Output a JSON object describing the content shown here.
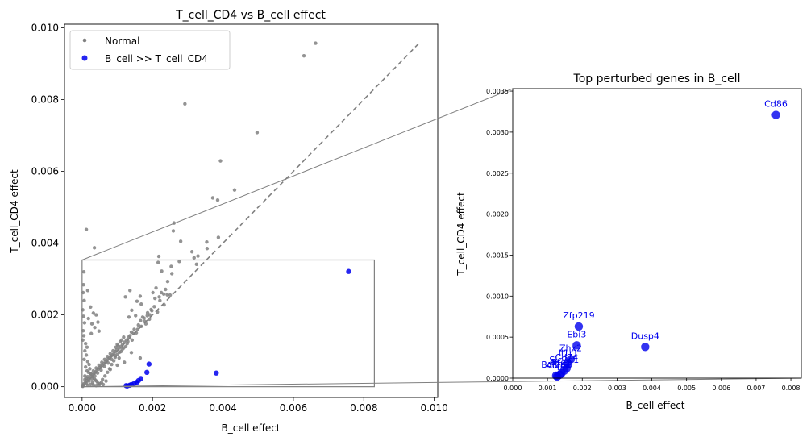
{
  "chart_data": [
    {
      "type": "scatter",
      "title": "T_cell_CD4 vs B_cell effect",
      "xlabel": "B_cell effect",
      "ylabel": "T_cell_CD4 effect",
      "xlim": [
        -0.0005,
        0.0101
      ],
      "ylim": [
        -0.0003,
        0.0101
      ],
      "xticks": [
        0.0,
        0.002,
        0.004,
        0.006,
        0.008,
        0.01
      ],
      "xtick_labels": [
        "0.000",
        "0.002",
        "0.004",
        "0.006",
        "0.008",
        "0.010"
      ],
      "yticks": [
        0.0,
        0.002,
        0.004,
        0.006,
        0.008,
        0.01
      ],
      "ytick_labels": [
        "0.000",
        "0.002",
        "0.004",
        "0.006",
        "0.008",
        "0.010"
      ],
      "grid": false,
      "legend_position": "top-left",
      "colors": {
        "normal": "#808080",
        "highlight": "#0000ee",
        "diagonal": "#808080"
      },
      "diagonal": {
        "x": [
          0.0,
          0.00955
        ],
        "y": [
          0.0,
          0.00955
        ],
        "style": "dashed"
      },
      "zoom_box": {
        "x": [
          0.0,
          0.0083
        ],
        "y": [
          0.0,
          0.00353
        ]
      },
      "series": [
        {
          "name": "Normal",
          "color": "#808080",
          "points": [
            [
              0.00663,
              0.00957
            ],
            [
              0.0063,
              0.00922
            ],
            [
              0.00292,
              0.00788
            ],
            [
              0.00497,
              0.00708
            ],
            [
              0.00393,
              0.00629
            ],
            [
              0.00371,
              0.00526
            ],
            [
              0.00385,
              0.0052
            ],
            [
              0.00433,
              0.00548
            ],
            [
              0.00012,
              0.00438
            ],
            [
              0.00035,
              0.00387
            ],
            [
              0.00261,
              0.00456
            ],
            [
              0.00259,
              0.00434
            ],
            [
              0.0028,
              0.00405
            ],
            [
              0.00387,
              0.00416
            ],
            [
              0.00354,
              0.00403
            ],
            [
              0.00355,
              0.00385
            ],
            [
              0.00312,
              0.00376
            ],
            [
              0.00329,
              0.00364
            ],
            [
              0.00318,
              0.00359
            ],
            [
              0.00325,
              0.00341
            ],
            [
              0.00218,
              0.00363
            ],
            [
              0.00216,
              0.00346
            ],
            [
              0.00226,
              0.00322
            ],
            [
              0.00253,
              0.00335
            ],
            [
              0.00255,
              0.00315
            ],
            [
              0.00276,
              0.00349
            ],
            [
              0.00243,
              0.00293
            ],
            [
              0.00237,
              0.00271
            ],
            [
              0.00242,
              0.00256
            ],
            [
              0.0025,
              0.00255
            ],
            [
              0.00219,
              0.0025
            ],
            [
              0.00221,
              0.0024
            ],
            [
              0.00233,
              0.00228
            ],
            [
              0.00207,
              0.00246
            ],
            [
              0.00205,
              0.00223
            ],
            [
              0.00196,
              0.00215
            ],
            [
              0.00165,
              0.00252
            ],
            [
              0.00136,
              0.00268
            ],
            [
              0.00123,
              0.0025
            ],
            [
              0.00156,
              0.00238
            ],
            [
              0.00168,
              0.0023
            ],
            [
              0.00141,
              0.00213
            ],
            [
              0.00185,
              0.00198
            ],
            [
              0.00152,
              0.00198
            ],
            [
              0.00133,
              0.00194
            ],
            [
              0.00176,
              0.00191
            ],
            [
              0.00191,
              0.00188
            ],
            [
              0.00181,
              0.00175
            ],
            [
              0.00168,
              0.00168
            ],
            [
              0.00158,
              0.0016
            ],
            [
              0.00146,
              0.00148
            ],
            [
              0.0014,
              0.00152
            ],
            [
              0.00132,
              0.00138
            ],
            [
              0.00126,
              0.0013
            ],
            [
              0.0012,
              0.00124
            ],
            [
              0.00115,
              0.00118
            ],
            [
              0.0011,
              0.00112
            ],
            [
              0.00105,
              0.00108
            ],
            [
              0.00098,
              0.00103
            ],
            [
              0.00094,
              0.00098
            ],
            [
              0.0009,
              0.00092
            ],
            [
              0.00086,
              0.00088
            ],
            [
              0.00082,
              0.00085
            ],
            [
              0.00078,
              0.0008
            ],
            [
              0.00074,
              0.00077
            ],
            [
              0.0007,
              0.00072
            ],
            [
              0.00066,
              0.00069
            ],
            [
              0.00062,
              0.00064
            ],
            [
              0.00058,
              0.0006
            ],
            [
              0.00054,
              0.00057
            ],
            [
              0.0005,
              0.00053
            ],
            [
              0.00046,
              0.00049
            ],
            [
              0.00042,
              0.00045
            ],
            [
              0.00038,
              0.00041
            ],
            [
              0.00034,
              0.00037
            ],
            [
              0.0003,
              0.00033
            ],
            [
              0.00026,
              0.00029
            ],
            [
              0.00022,
              0.00025
            ],
            [
              0.00018,
              0.00021
            ],
            [
              0.00014,
              0.00017
            ],
            [
              0.0001,
              0.00013
            ],
            [
              6e-05,
              9e-05
            ],
            [
              3e-05,
              5e-05
            ],
            [
              1e-05,
              2e-05
            ],
            [
              2e-05,
              1e-05
            ],
            [
              0.00118,
              0.00138
            ],
            [
              0.00108,
              0.00125
            ],
            [
              0.001,
              0.00118
            ],
            [
              0.00096,
              0.0011
            ],
            [
              0.00088,
              0.001
            ],
            [
              0.0008,
              0.00092
            ],
            [
              0.00072,
              0.00084
            ],
            [
              0.00064,
              0.00076
            ],
            [
              0.00056,
              0.00068
            ],
            [
              0.00048,
              0.0006
            ],
            [
              0.0004,
              0.00052
            ],
            [
              0.00032,
              0.00044
            ],
            [
              0.00024,
              0.00036
            ],
            [
              0.00016,
              0.00028
            ],
            [
              8e-05,
              0.0002
            ],
            [
              0.00128,
              0.0012
            ],
            [
              0.00118,
              0.00108
            ],
            [
              0.00106,
              0.00096
            ],
            [
              0.00094,
              0.00086
            ],
            [
              0.00084,
              0.00076
            ],
            [
              0.00074,
              0.00066
            ],
            [
              0.00064,
              0.00056
            ],
            [
              0.00054,
              0.00046
            ],
            [
              0.00044,
              0.00038
            ],
            [
              0.00036,
              0.0003
            ],
            [
              0.00028,
              0.00022
            ],
            [
              0.0002,
              0.00016
            ],
            [
              0.00012,
              0.0001
            ],
            [
              4e-05,
              4e-05
            ],
            [
              5e-05,
              0.0032
            ],
            [
              4e-05,
              0.00284
            ],
            [
              3e-05,
              0.00262
            ],
            [
              6e-05,
              0.0024
            ],
            [
              2e-05,
              0.00214
            ],
            [
              4e-05,
              0.00196
            ],
            [
              7e-05,
              0.00178
            ],
            [
              3e-05,
              0.00156
            ],
            [
              5e-05,
              0.00142
            ],
            [
              2e-05,
              0.0013
            ],
            [
              0.00016,
              0.00268
            ],
            [
              0.00024,
              0.00222
            ],
            [
              0.00032,
              0.00205
            ],
            [
              0.00018,
              0.0019
            ],
            [
              0.00028,
              0.00175
            ],
            [
              0.0004,
              0.002
            ],
            [
              0.00045,
              0.0018
            ],
            [
              0.00036,
              0.00165
            ],
            [
              0.00048,
              0.00155
            ],
            [
              0.00026,
              0.00148
            ],
            [
              0.0001,
              0.0012
            ],
            [
              0.00014,
              0.0011
            ],
            [
              8e-05,
              0.001
            ],
            [
              0.00012,
              0.00088
            ],
            [
              6e-05,
              0.00076
            ],
            [
              0.00016,
              0.0007
            ],
            [
              0.0002,
              0.00062
            ],
            [
              0.0001,
              0.00055
            ],
            [
              0.00022,
              0.0005
            ],
            [
              0.00014,
              0.00044
            ],
            [
              0.00018,
              0.0004
            ],
            [
              0.00025,
              0.00036
            ],
            [
              8e-05,
              0.0003
            ],
            [
              0.0003,
              0.00028
            ],
            [
              0.00012,
              0.00024
            ],
            [
              0.00035,
              0.00022
            ],
            [
              0.00038,
              0.00018
            ],
            [
              0.00042,
              0.00015
            ],
            [
              0.0003,
              0.00012
            ],
            [
              0.00045,
              0.0001
            ],
            [
              0.0005,
              8e-05
            ],
            [
              0.00055,
              0.00012
            ],
            [
              0.0006,
              6e-05
            ],
            [
              0.00048,
              4e-05
            ],
            [
              0.0004,
              3e-05
            ],
            [
              0.00032,
              5e-05
            ],
            [
              0.00024,
              6e-05
            ],
            [
              0.00016,
              4e-05
            ],
            [
              0.00058,
              0.0002
            ],
            [
              0.00065,
              0.0003
            ],
            [
              0.00068,
              0.00016
            ],
            [
              0.00072,
              0.0004
            ],
            [
              0.00078,
              0.0005
            ],
            [
              0.00084,
              0.00062
            ],
            [
              0.0009,
              0.00072
            ],
            [
              0.00094,
              0.00082
            ],
            [
              0.001,
              0.0009
            ],
            [
              0.00105,
              0.0008
            ],
            [
              0.0011,
              0.00098
            ],
            [
              0.00114,
              0.00104
            ],
            [
              0.00102,
              0.00114
            ],
            [
              0.00112,
              0.0013
            ],
            [
              0.00124,
              0.00112
            ],
            [
              0.0013,
              0.00126
            ],
            [
              0.00136,
              0.00142
            ],
            [
              0.00142,
              0.0013
            ],
            [
              0.00148,
              0.0016
            ],
            [
              0.00154,
              0.0015
            ],
            [
              0.0016,
              0.00172
            ],
            [
              0.00166,
              0.00184
            ],
            [
              0.00172,
              0.00194
            ],
            [
              0.00178,
              0.00182
            ],
            [
              0.00186,
              0.00206
            ],
            [
              0.00192,
              0.002
            ],
            [
              0.00198,
              0.00212
            ],
            [
              0.00201,
              0.00262
            ],
            [
              0.0021,
              0.00275
            ],
            [
              0.00225,
              0.00262
            ],
            [
              0.00232,
              0.00258
            ],
            [
              0.00214,
              0.00208
            ],
            [
              0.00165,
              0.0008
            ],
            [
              0.0014,
              0.00095
            ],
            [
              0.0012,
              0.00068
            ],
            [
              0.001,
              0.0006
            ],
            [
              0.0008,
              0.00048
            ]
          ]
        },
        {
          "name": "B_cell >> T_cell_CD4",
          "color": "#0000ee",
          "points": [
            [
              0.00757,
              0.00321
            ],
            [
              0.0019,
              0.00063
            ],
            [
              0.00381,
              0.00038
            ],
            [
              0.00184,
              0.0004
            ],
            [
              0.00167,
              0.00023
            ],
            [
              0.0016,
              0.00017
            ],
            [
              0.00155,
              0.00012
            ],
            [
              0.00148,
              9e-05
            ],
            [
              0.0014,
              6e-05
            ],
            [
              0.00135,
              4e-05
            ],
            [
              0.00128,
              2e-05
            ],
            [
              0.00125,
              3e-05
            ]
          ]
        }
      ]
    },
    {
      "type": "scatter",
      "title": "Top perturbed genes in B_cell",
      "xlabel": "B_cell effect",
      "ylabel": "T_cell_CD4 effect",
      "xlim": [
        0.0,
        0.0083
      ],
      "ylim": [
        0.0,
        0.00353
      ],
      "xticks": [
        0.0,
        0.001,
        0.002,
        0.003,
        0.004,
        0.005,
        0.006,
        0.007,
        0.008
      ],
      "xtick_labels": [
        "0.000",
        "0.001",
        "0.002",
        "0.003",
        "0.004",
        "0.005",
        "0.006",
        "0.007",
        "0.008"
      ],
      "yticks": [
        0.0,
        0.0005,
        0.001,
        0.0015,
        0.002,
        0.0025,
        0.003,
        0.0035
      ],
      "ytick_labels": [
        "0.0000",
        "0.0005",
        "0.0010",
        "0.0015",
        "0.0020",
        "0.0025",
        "0.0030",
        "0.0035"
      ],
      "grid": false,
      "colors": {
        "points": "#0000ee",
        "labels": "#0000ee"
      },
      "points": [
        {
          "label": "Cd86",
          "x": 0.00757,
          "y": 0.00321
        },
        {
          "label": "Zfp219",
          "x": 0.0019,
          "y": 0.00063
        },
        {
          "label": "Dusp4",
          "x": 0.00381,
          "y": 0.00038
        },
        {
          "label": "Ebi3",
          "x": 0.00184,
          "y": 0.0004
        },
        {
          "label": "Zhx2",
          "x": 0.00167,
          "y": 0.00023
        },
        {
          "label": "Il1r1",
          "x": 0.0016,
          "y": 0.00017
        },
        {
          "label": "Cd74",
          "x": 0.00155,
          "y": 0.00012
        },
        {
          "label": "Slc2a1",
          "x": 0.00148,
          "y": 9e-05
        },
        {
          "label": "Btg2",
          "x": 0.0014,
          "y": 6e-05
        },
        {
          "label": "Per1",
          "x": 0.00135,
          "y": 4e-05
        },
        {
          "label": "Acp5",
          "x": 0.00128,
          "y": 2e-05
        },
        {
          "label": "Bcl2a1",
          "x": 0.00125,
          "y": 3e-05
        }
      ]
    }
  ]
}
